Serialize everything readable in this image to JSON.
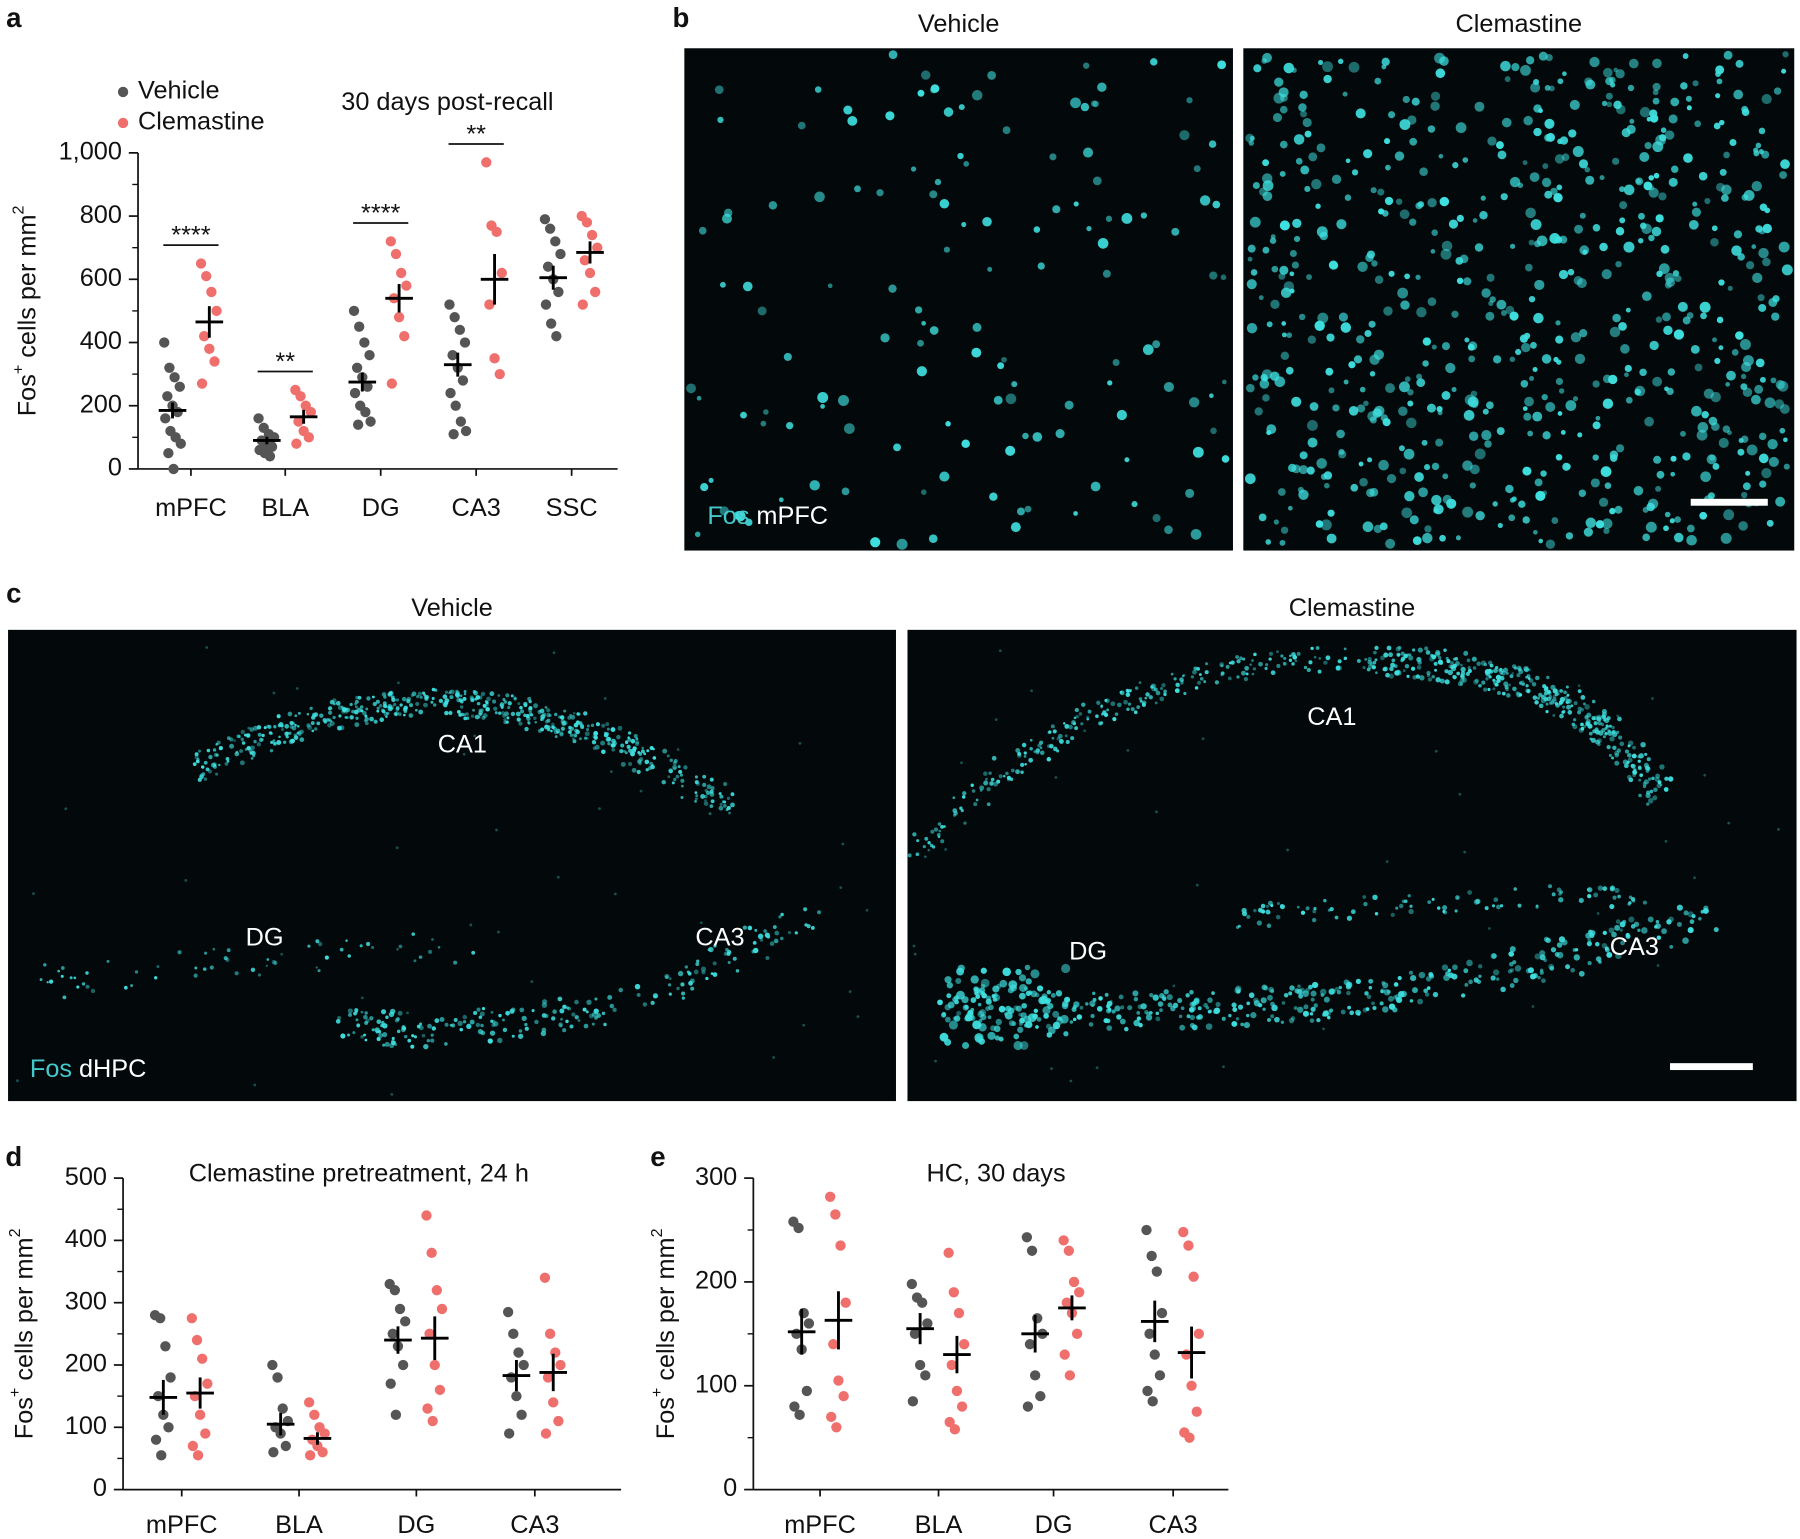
{
  "chart_data": [
    {
      "panel": "a",
      "type": "strip",
      "title": "30 days post-recall",
      "legend": "top-left",
      "ylabel": {
        "main": "Fos",
        "sup": "+",
        "rest": " cells per mm",
        "sup2": "2"
      },
      "categories": [
        "mPFC",
        "BLA",
        "DG",
        "CA3",
        "SSC"
      ],
      "ylim": [
        0,
        1000
      ],
      "yticks": [
        0,
        200,
        400,
        600,
        800,
        {
          "value": 1000,
          "label": "1,000"
        }
      ],
      "minor_yticks": [
        100,
        300,
        500,
        700,
        900
      ],
      "significance": [
        "****",
        "**",
        "****",
        "**",
        null
      ],
      "series": [
        {
          "name": "Vehicle",
          "color": "#555555",
          "points": [
            [
              400,
              320,
              290,
              260,
              230,
              200,
              180,
              160,
              120,
              100,
              80,
              50,
              0
            ],
            [
              160,
              130,
              110,
              100,
              90,
              80,
              70,
              60,
              50,
              40
            ],
            [
              500,
              450,
              400,
              360,
              320,
              290,
              260,
              240,
              200,
              180,
              150,
              140
            ],
            [
              520,
              480,
              440,
              400,
              360,
              320,
              280,
              240,
              200,
              150,
              120,
              110
            ],
            [
              790,
              760,
              720,
              680,
              640,
              600,
              560,
              520,
              460,
              420
            ]
          ],
          "values": [
            185,
            90,
            275,
            330,
            605
          ],
          "errors": [
            25,
            12,
            30,
            38,
            38
          ]
        },
        {
          "name": "Clemastine",
          "color": "#ef6f6c",
          "points": [
            [
              650,
              610,
              560,
              500,
              420,
              380,
              340,
              270
            ],
            [
              250,
              230,
              200,
              180,
              150,
              120,
              100,
              80
            ],
            [
              720,
              680,
              620,
              580,
              540,
              480,
              420,
              270
            ],
            [
              970,
              770,
              750,
              620,
              520,
              350,
              300
            ],
            [
              800,
              780,
              740,
              700,
              660,
              620,
              560,
              520
            ]
          ],
          "values": [
            465,
            165,
            540,
            600,
            685
          ],
          "errors": [
            50,
            22,
            45,
            80,
            35
          ]
        }
      ]
    },
    {
      "panel": "d",
      "type": "strip",
      "title": "Clemastine pretreatment, 24 h",
      "ylabel": {
        "main": "Fos",
        "sup": "+",
        "rest": " cells per mm",
        "sup2": "2"
      },
      "categories": [
        "mPFC",
        "BLA",
        "DG",
        "CA3"
      ],
      "ylim": [
        0,
        500
      ],
      "yticks": [
        0,
        100,
        200,
        300,
        400,
        500
      ],
      "minor_yticks": [
        50,
        150,
        250,
        350,
        450
      ],
      "series": [
        {
          "name": "Vehicle",
          "color": "#555555",
          "points": [
            [
              280,
              275,
              230,
              180,
              150,
              120,
              100,
              80,
              55
            ],
            [
              200,
              180,
              130,
              110,
              100,
              90,
              70,
              60
            ],
            [
              330,
              320,
              290,
              270,
              250,
              230,
              200,
              170,
              120
            ],
            [
              285,
              250,
              220,
              200,
              180,
              150,
              120,
              90
            ]
          ],
          "values": [
            148,
            105,
            240,
            183
          ],
          "errors": [
            28,
            18,
            22,
            25
          ]
        },
        {
          "name": "Clemastine",
          "color": "#ef6f6c",
          "points": [
            [
              275,
              240,
              210,
              170,
              150,
              120,
              90,
              70,
              55
            ],
            [
              140,
              120,
              100,
              90,
              80,
              70,
              60,
              55
            ],
            [
              440,
              380,
              320,
              290,
              250,
              200,
              160,
              130,
              110
            ],
            [
              340,
              250,
              220,
              200,
              180,
              140,
              110,
              90
            ]
          ],
          "values": [
            155,
            82,
            243,
            188
          ],
          "errors": [
            25,
            10,
            35,
            30
          ]
        }
      ]
    },
    {
      "panel": "e",
      "type": "strip",
      "title": "HC, 30 days",
      "ylabel": {
        "main": "Fos",
        "sup": "+",
        "rest": " cells per mm",
        "sup2": "2"
      },
      "categories": [
        "mPFC",
        "BLA",
        "DG",
        "CA3"
      ],
      "ylim": [
        0,
        300
      ],
      "yticks": [
        0,
        100,
        200,
        300
      ],
      "minor_yticks": [
        50,
        150,
        250
      ],
      "series": [
        {
          "name": "Vehicle",
          "color": "#555555",
          "points": [
            [
              258,
              252,
              170,
              160,
              150,
              135,
              95,
              80,
              72
            ],
            [
              198,
              185,
              180,
              160,
              150,
              120,
              110,
              85
            ],
            [
              243,
              230,
              165,
              150,
              140,
              110,
              90,
              80
            ],
            [
              250,
              225,
              210,
              170,
              150,
              130,
              110,
              95,
              85
            ]
          ],
          "values": [
            152,
            155,
            150,
            162
          ],
          "errors": [
            22,
            15,
            18,
            20
          ]
        },
        {
          "name": "Clemastine",
          "color": "#ef6f6c",
          "points": [
            [
              282,
              265,
              235,
              180,
              140,
              105,
              90,
              70,
              60
            ],
            [
              228,
              190,
              170,
              140,
              120,
              95,
              80,
              65,
              58
            ],
            [
              240,
              230,
              200,
              190,
              180,
              170,
              150,
              130,
              110
            ],
            [
              248,
              235,
              205,
              150,
              130,
              100,
              75,
              55,
              50
            ]
          ],
          "values": [
            163,
            130,
            175,
            132
          ],
          "errors": [
            28,
            18,
            12,
            25
          ]
        }
      ]
    }
  ],
  "images": [
    {
      "panel": "b",
      "titles": [
        "Vehicle",
        "Clemastine"
      ],
      "stain": "Fos",
      "region": "mPFC"
    },
    {
      "panel": "c",
      "titles": [
        "Vehicle",
        "Clemastine"
      ],
      "stain": "Fos",
      "region": "dHPC",
      "labels": [
        [
          "CA1",
          "DG",
          "CA3"
        ],
        [
          "CA1",
          "DG",
          "CA3"
        ]
      ]
    }
  ]
}
